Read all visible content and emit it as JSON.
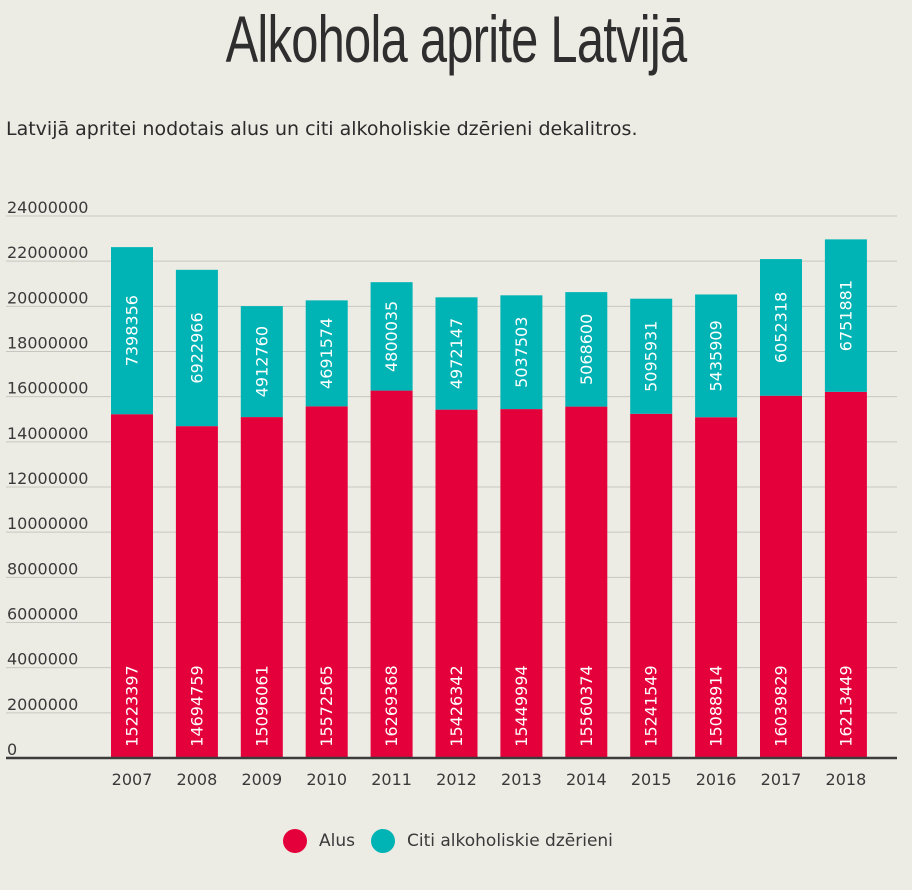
{
  "title": "Alkohola aprite Latvijā",
  "subtitle": "Latvijā apritei nodotais alus un citi alkoholiskie dzērieni dekalitros.",
  "colors": {
    "alus": "#e4003b",
    "citi": "#00b3b5",
    "grid": "#c7c7c1",
    "axis": "#3c3c3c",
    "background": "#ecebe4"
  },
  "chart_data": {
    "type": "bar",
    "stacked": true,
    "categories": [
      "2007",
      "2008",
      "2009",
      "2010",
      "2011",
      "2012",
      "2013",
      "2014",
      "2015",
      "2016",
      "2017",
      "2018"
    ],
    "series": [
      {
        "name": "Alus",
        "color": "#e4003b",
        "values": [
          15223397,
          14694759,
          15096061,
          15572565,
          16269368,
          15426342,
          15449994,
          15560374,
          15241549,
          15088914,
          16039829,
          16213449
        ]
      },
      {
        "name": "Citi alkoholiskie dzērieni",
        "color": "#00b3b5",
        "values": [
          7398356,
          6922966,
          4912760,
          4691574,
          4800035,
          4972147,
          5037503,
          5068600,
          5095931,
          5435909,
          6052318,
          6751881
        ]
      }
    ],
    "ylim": [
      0,
      24000000
    ],
    "yticks": [
      0,
      2000000,
      4000000,
      6000000,
      8000000,
      10000000,
      12000000,
      14000000,
      16000000,
      18000000,
      20000000,
      22000000,
      24000000
    ],
    "grid": true,
    "legend_position": "bottom"
  }
}
